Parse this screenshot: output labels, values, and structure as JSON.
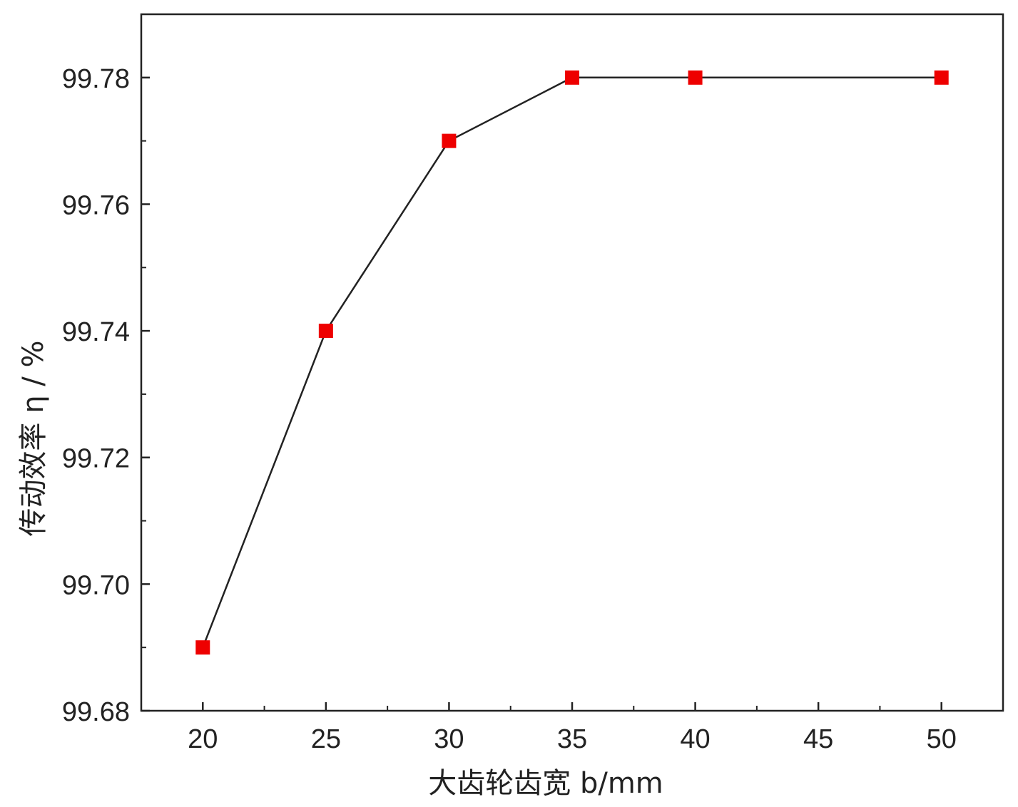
{
  "chart_data": {
    "type": "line",
    "xlabel": "大齿轮齿宽 b/mm",
    "ylabel": "传动效率 η / %",
    "x_ticks": [
      "20",
      "25",
      "30",
      "35",
      "40",
      "45",
      "50"
    ],
    "y_ticks": [
      "99.68",
      "99.70",
      "99.72",
      "99.74",
      "99.76",
      "99.78"
    ],
    "xlim": [
      17.5,
      52.5
    ],
    "ylim": [
      99.68,
      99.79
    ],
    "grid": false,
    "series": [
      {
        "x": [
          20,
          25,
          30,
          35,
          40,
          50
        ],
        "values": [
          99.69,
          99.74,
          99.77,
          99.78,
          99.78,
          99.78
        ],
        "marker": "square",
        "marker_color": "#ee0000",
        "line_color": "#222222"
      }
    ]
  }
}
